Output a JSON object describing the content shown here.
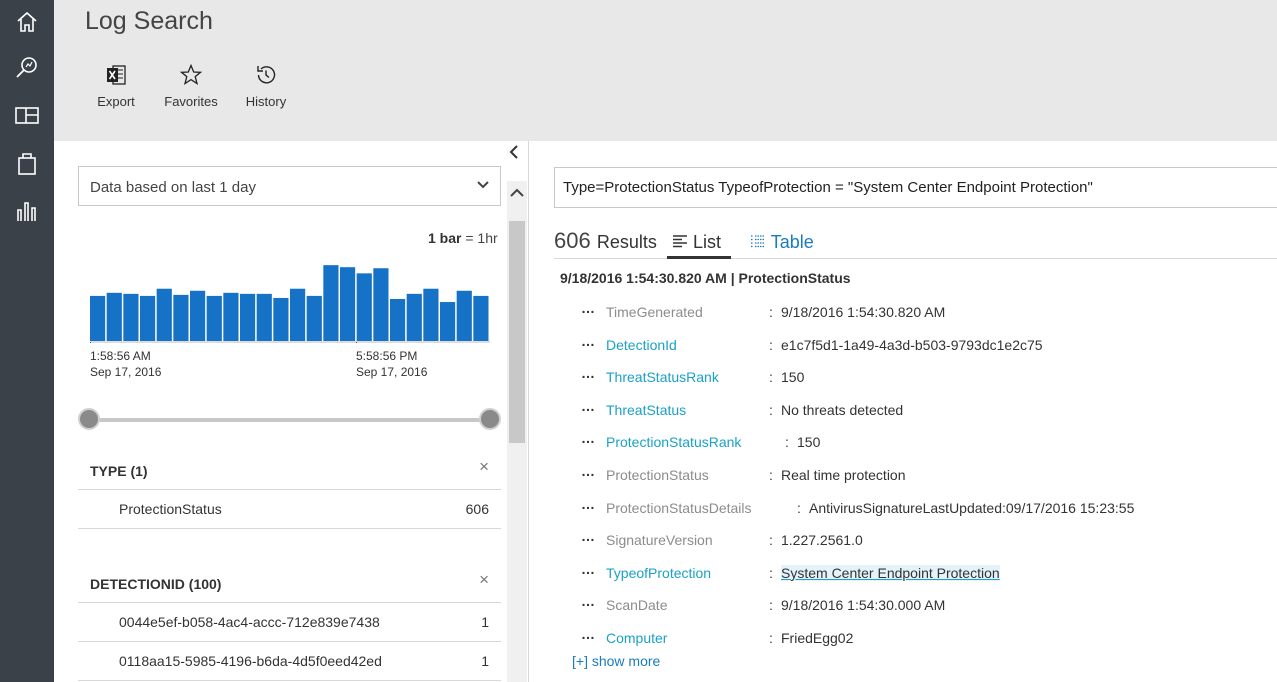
{
  "nav": {
    "icons": [
      "home-icon",
      "search-icon",
      "dashboard-icon",
      "solutions-gallery-icon",
      "usage-icon"
    ]
  },
  "header": {
    "title": "Log Search",
    "tools": [
      {
        "label": "Export",
        "icon": "excel-icon"
      },
      {
        "label": "Favorites",
        "icon": "star-icon"
      },
      {
        "label": "History",
        "icon": "history-icon"
      }
    ]
  },
  "left": {
    "range_selected": "Data based on last 1 day",
    "bar_legend": {
      "bold": "1 bar",
      "rest": " = 1hr"
    },
    "histogram_values": [
      44,
      47,
      46,
      44,
      51,
      45,
      49,
      44,
      47,
      46,
      46,
      42,
      51,
      44,
      74,
      72,
      66,
      71,
      41,
      46,
      51,
      38,
      49,
      44
    ],
    "histogram_color": "#1572c6",
    "time_start": {
      "time": "1:58:56 AM",
      "date": "Sep 17, 2016"
    },
    "time_mid": {
      "time": "5:58:56 PM",
      "date": "Sep 17, 2016"
    },
    "facets": [
      {
        "name": "TYPE",
        "count": "(1)",
        "close": "×",
        "rows": [
          {
            "key": "ProtectionStatus",
            "value": "606"
          }
        ]
      },
      {
        "name": "DETECTIONID",
        "count": "(100)",
        "close": "×",
        "rows": [
          {
            "key": "0044e5ef-b058-4ac4-accc-712e839e7438",
            "value": "1"
          },
          {
            "key": "0118aa15-5985-4196-b6da-4d5f0eed42ed",
            "value": "1"
          }
        ]
      }
    ]
  },
  "right": {
    "query": "Type=ProtectionStatus TypeofProtection = \"System Center Endpoint Protection\"",
    "results_count": "606",
    "results_word": "Results",
    "tabs": {
      "list": "List",
      "table": "Table"
    },
    "record_heading": "9/18/2016 1:54:30.820 AM | ProtectionStatus",
    "fields": [
      {
        "name": "TimeGenerated",
        "value": "9/18/2016 1:54:30.820 AM",
        "style": "gray"
      },
      {
        "name": "DetectionId",
        "value": "e1c7f5d1-1a49-4a3d-b503-9793dc1e2c75",
        "style": "link"
      },
      {
        "name": "ThreatStatusRank",
        "value": "150",
        "style": "link"
      },
      {
        "name": "ThreatStatus",
        "value": "No threats detected",
        "style": "link"
      },
      {
        "name": "ProtectionStatusRank",
        "value": "150",
        "style": "link"
      },
      {
        "name": "ProtectionStatus",
        "value": "Real time protection",
        "style": "gray"
      },
      {
        "name": "ProtectionStatusDetails",
        "value": "AntivirusSignatureLastUpdated:09/17/2016 15:23:55",
        "style": "gray"
      },
      {
        "name": "SignatureVersion",
        "value": "1.227.2561.0",
        "style": "gray"
      },
      {
        "name": "TypeofProtection",
        "value": "System Center Endpoint Protection",
        "style": "link",
        "highlight": true
      },
      {
        "name": "ScanDate",
        "value": "9/18/2016 1:54:30.000 AM",
        "style": "gray"
      },
      {
        "name": "Computer",
        "value": "FriedEgg02",
        "style": "link"
      }
    ],
    "show_more": "[+] show more"
  }
}
